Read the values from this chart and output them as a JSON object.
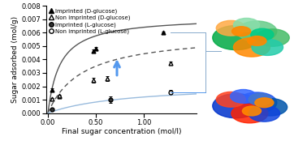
{
  "title": "",
  "xlabel": "Final sugar concentration (mol/l)",
  "ylabel": "Sugar adsorbed (mol/g)",
  "xlim": [
    -0.02,
    1.55
  ],
  "ylim": [
    0,
    0.008
  ],
  "yticks": [
    0.0,
    0.001,
    0.002,
    0.003,
    0.004,
    0.005,
    0.006,
    0.007,
    0.008
  ],
  "xticks": [
    0.0,
    0.5,
    1.0
  ],
  "xticklabels": [
    "0.00",
    "0.50",
    "1.00"
  ],
  "imp_D": {
    "x": [
      0.04,
      0.12,
      0.47,
      0.5,
      1.2
    ],
    "y": [
      0.00175,
      0.00125,
      0.00465,
      0.0048,
      0.006
    ],
    "yerr": [
      0.0001,
      8e-05,
      0.00012,
      0.00012,
      8e-05
    ],
    "label": "Imprinted (D-glucose)"
  },
  "non_imp_D": {
    "x": [
      0.04,
      0.12,
      0.47,
      0.62,
      1.28
    ],
    "y": [
      0.00105,
      0.00128,
      0.00245,
      0.00258,
      0.00375
    ],
    "yerr": [
      0.0001,
      8e-05,
      0.00018,
      0.00018,
      0.0001
    ],
    "label": "Non imprinted (D-glucose)"
  },
  "imp_L": {
    "x": [
      0.04,
      0.65
    ],
    "y": [
      0.00028,
      0.001
    ],
    "yerr": [
      8e-05,
      0.00022
    ],
    "label": "Imprinted (L-glucose)"
  },
  "non_imp_L": {
    "x": [
      1.28
    ],
    "y": [
      0.00155
    ],
    "yerr": [
      0.00015
    ],
    "label": "Non imprinted (L-glucose)"
  },
  "langmuir_imp_D": {
    "qmax": 0.0072,
    "K": 8.0
  },
  "langmuir_non_imp_D": {
    "qmax": 0.006,
    "K": 2.8
  },
  "langmuir_imp_L": {
    "qmax": 0.0022,
    "K": 1.2
  },
  "fit_dark_color": "#555555",
  "fit_light_color": "#99bbdd",
  "arrow_color": "#5599ee",
  "bracket_color": "#88aacc",
  "background_color": "#ffffff"
}
